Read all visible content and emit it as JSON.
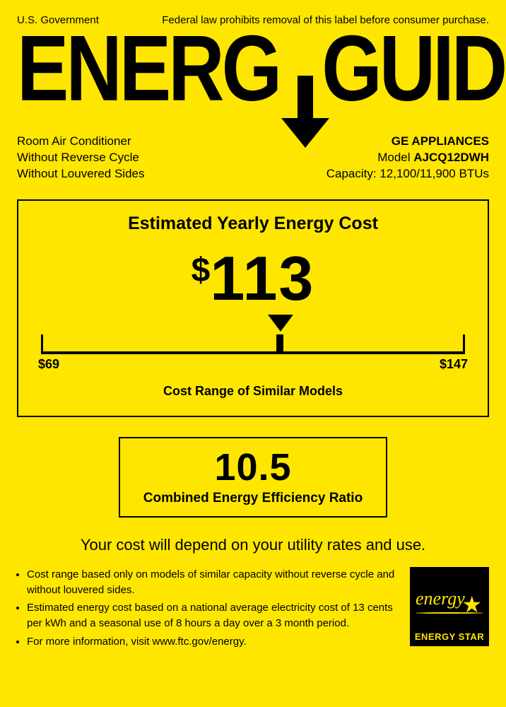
{
  "colors": {
    "background": "#ffe600",
    "foreground": "#000000"
  },
  "header": {
    "gov": "U.S. Government",
    "disclaimer": "Federal law prohibits removal of this label before consumer purchase.",
    "logo_left": "ENERG",
    "logo_right": "GUIDE"
  },
  "product": {
    "left": {
      "type": "Room Air Conditioner",
      "line2": "Without Reverse Cycle",
      "line3": "Without Louvered Sides"
    },
    "right": {
      "brand": "GE APPLIANCES",
      "model_label": "Model ",
      "model": "AJCQ12DWH",
      "capacity_label": "Capacity: ",
      "capacity": "12,100/11,900 BTUs"
    }
  },
  "cost": {
    "title": "Estimated Yearly Energy Cost",
    "currency": "$",
    "value": "113",
    "value_numeric": 113,
    "range": {
      "min_label": "$69",
      "max_label": "$147",
      "min": 69,
      "max": 147,
      "subtitle": "Cost Range of Similar Models",
      "pointer_percent": 56.4
    }
  },
  "ratio": {
    "value": "10.5",
    "label": "Combined Energy Efficiency Ratio"
  },
  "depend": "Your cost will depend on your utility rates and use.",
  "footnotes": {
    "b1": "Cost range based only on models of similar capacity without reverse cycle and without louvered sides.",
    "b2": "Estimated energy cost based on a national average electricity cost of 13 cents per kWh and a seasonal use of 8 hours a day over a 3 month period.",
    "b3": "For more information, visit www.ftc.gov/energy."
  },
  "energystar": {
    "script": "energy",
    "label": "ENERGY STAR"
  }
}
